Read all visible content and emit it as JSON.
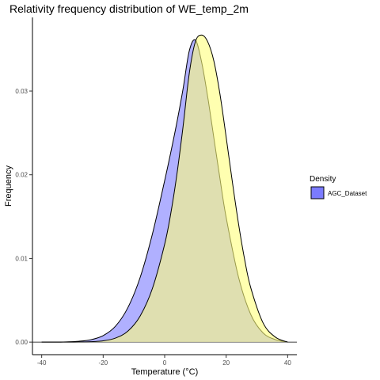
{
  "chart_data": {
    "type": "area",
    "title": "Relativity frequency distribution of WE_temp_2m",
    "xlabel": "Temperature (°C)",
    "ylabel": "Frequency",
    "xlim": [
      -43,
      43
    ],
    "ylim": [
      -0.0015,
      0.0388
    ],
    "x_ticks": [
      -40,
      -20,
      0,
      20,
      40
    ],
    "x_tick_labels": [
      "-40",
      "-20",
      "0",
      "20",
      "40"
    ],
    "y_ticks": [
      0.0,
      0.01,
      0.02,
      0.03
    ],
    "y_tick_labels": [
      "0.00",
      "0.01",
      "0.02",
      "0.03"
    ],
    "grid": false,
    "legend": {
      "title": "Density",
      "placement": "right",
      "entries": [
        {
          "label": "AGC_Dataset",
          "color": "#7b7bff"
        }
      ]
    },
    "series": [
      {
        "name": "AGC_Dataset",
        "color": "#7b7bff",
        "opacity": 0.6,
        "x": [
          -40,
          -36,
          -32,
          -28,
          -24,
          -20,
          -16,
          -12,
          -8,
          -4,
          0,
          2,
          4,
          6,
          8,
          10,
          12,
          14,
          16,
          18,
          20,
          24,
          28,
          32,
          36,
          40
        ],
        "y": [
          0.0,
          0.0,
          3e-05,
          0.0001,
          0.00029,
          0.00078,
          0.0019,
          0.0041,
          0.0077,
          0.0129,
          0.0193,
          0.0227,
          0.0263,
          0.0303,
          0.0348,
          0.0361,
          0.0335,
          0.0293,
          0.0244,
          0.0195,
          0.0149,
          0.0078,
          0.0033,
          0.0011,
          0.0003,
          0.0
        ]
      },
      {
        "color": "#ffff7b",
        "opacity": 0.6,
        "x": [
          -40,
          -36,
          -32,
          -28,
          -24,
          -20,
          -16,
          -12,
          -8,
          -4,
          0,
          2,
          4,
          6,
          8,
          10,
          12,
          14,
          16,
          18,
          20,
          22,
          24,
          26,
          28,
          32,
          36,
          40
        ],
        "y": [
          0.0,
          0.0,
          0.0,
          1e-05,
          5e-05,
          0.00016,
          0.00048,
          0.0013,
          0.0031,
          0.0064,
          0.0117,
          0.0154,
          0.0201,
          0.0258,
          0.0321,
          0.0359,
          0.0367,
          0.0359,
          0.0336,
          0.0296,
          0.0245,
          0.0192,
          0.0142,
          0.0099,
          0.0065,
          0.0023,
          0.0006,
          0.0
        ]
      }
    ]
  }
}
